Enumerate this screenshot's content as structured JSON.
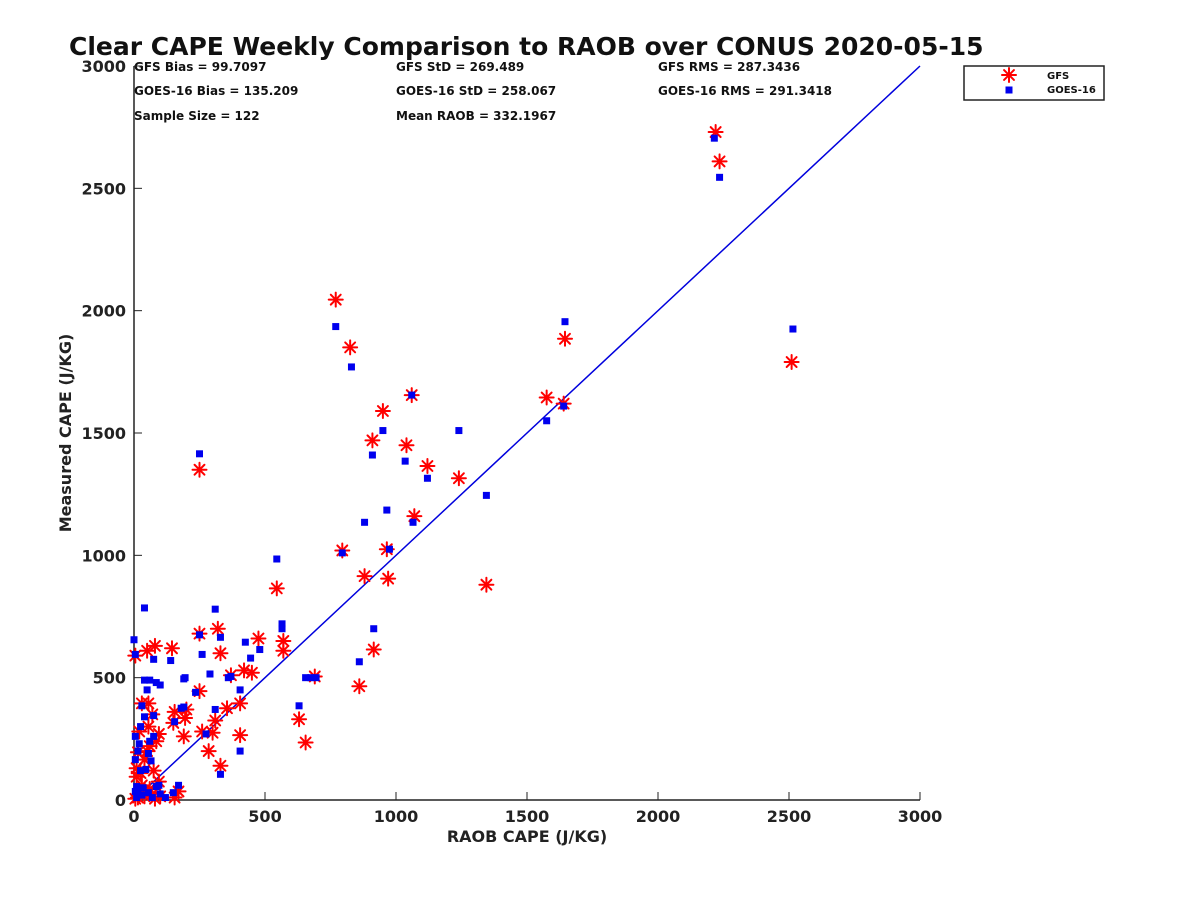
{
  "chart_data": {
    "type": "scatter",
    "title": "Clear CAPE Weekly Comparison to RAOB over CONUS 2020-05-15",
    "xlabel": "RAOB CAPE (J/KG)",
    "ylabel": "Measured CAPE (J/KG)",
    "xlim": [
      0,
      3000
    ],
    "ylim": [
      0,
      3000
    ],
    "xticks": [
      "0",
      "500",
      "1000",
      "1500",
      "2000",
      "2500",
      "3000"
    ],
    "yticks": [
      "0",
      "500",
      "1000",
      "1500",
      "2000",
      "2500",
      "3000"
    ],
    "grid": false,
    "legend_position": "top-right (outside axes)",
    "stats": {
      "row1": [
        "GFS Bias = 99.7097",
        "GFS StD = 269.489",
        "GFS RMS = 287.3436"
      ],
      "row2": [
        "GOES-16 Bias = 135.209",
        "GOES-16 StD = 258.067",
        "GOES-16 RMS = 291.3418"
      ],
      "row3": [
        "Sample Size = 122",
        "Mean RAOB = 332.1967"
      ]
    },
    "reference_line": {
      "x": [
        0,
        3000
      ],
      "y": [
        0,
        3000
      ],
      "color": "#0000dd"
    },
    "series": [
      {
        "name": "GFS",
        "marker": "asterisk",
        "color": "#ff0000",
        "points": [
          [
            2220,
            2730
          ],
          [
            2235,
            2610
          ],
          [
            2510,
            1790
          ],
          [
            1575,
            1645
          ],
          [
            1640,
            1620
          ],
          [
            1645,
            1885
          ],
          [
            770,
            2045
          ],
          [
            825,
            1850
          ],
          [
            1060,
            1655
          ],
          [
            950,
            1590
          ],
          [
            910,
            1470
          ],
          [
            1040,
            1450
          ],
          [
            1120,
            1365
          ],
          [
            1240,
            1315
          ],
          [
            250,
            1350
          ],
          [
            1070,
            1160
          ],
          [
            795,
            1020
          ],
          [
            965,
            1025
          ],
          [
            880,
            915
          ],
          [
            970,
            905
          ],
          [
            1345,
            880
          ],
          [
            545,
            865
          ],
          [
            915,
            615
          ],
          [
            860,
            465
          ],
          [
            690,
            505
          ],
          [
            630,
            330
          ],
          [
            655,
            235
          ],
          [
            475,
            660
          ],
          [
            570,
            650
          ],
          [
            570,
            610
          ],
          [
            320,
            700
          ],
          [
            330,
            600
          ],
          [
            250,
            680
          ],
          [
            450,
            520
          ],
          [
            420,
            530
          ],
          [
            370,
            510
          ],
          [
            405,
            395
          ],
          [
            405,
            265
          ],
          [
            355,
            375
          ],
          [
            250,
            445
          ],
          [
            310,
            325
          ],
          [
            300,
            275
          ],
          [
            260,
            280
          ],
          [
            285,
            200
          ],
          [
            330,
            140
          ],
          [
            200,
            370
          ],
          [
            195,
            335
          ],
          [
            190,
            260
          ],
          [
            155,
            360
          ],
          [
            150,
            315
          ],
          [
            145,
            620
          ],
          [
            80,
            630
          ],
          [
            50,
            610
          ],
          [
            5,
            590
          ],
          [
            30,
            395
          ],
          [
            55,
            395
          ],
          [
            70,
            350
          ],
          [
            55,
            300
          ],
          [
            85,
            240
          ],
          [
            60,
            220
          ],
          [
            95,
            270
          ],
          [
            50,
            200
          ],
          [
            40,
            165
          ],
          [
            75,
            120
          ],
          [
            20,
            280
          ],
          [
            15,
            195
          ],
          [
            10,
            130
          ],
          [
            25,
            110
          ],
          [
            30,
            60
          ],
          [
            60,
            45
          ],
          [
            95,
            75
          ],
          [
            10,
            95
          ],
          [
            15,
            10
          ],
          [
            40,
            15
          ],
          [
            70,
            25
          ],
          [
            100,
            15
          ],
          [
            155,
            10
          ],
          [
            170,
            35
          ],
          [
            5,
            5
          ],
          [
            80,
            5
          ]
        ]
      },
      {
        "name": "GOES-16",
        "marker": "square",
        "color": "#0000ee",
        "points": [
          [
            2215,
            2705
          ],
          [
            2235,
            2545
          ],
          [
            2515,
            1925
          ],
          [
            1645,
            1955
          ],
          [
            1575,
            1550
          ],
          [
            1640,
            1610
          ],
          [
            770,
            1935
          ],
          [
            830,
            1770
          ],
          [
            1060,
            1655
          ],
          [
            950,
            1510
          ],
          [
            910,
            1410
          ],
          [
            1035,
            1385
          ],
          [
            1240,
            1510
          ],
          [
            1345,
            1245
          ],
          [
            1120,
            1315
          ],
          [
            250,
            1415
          ],
          [
            965,
            1185
          ],
          [
            880,
            1135
          ],
          [
            1065,
            1135
          ],
          [
            795,
            1010
          ],
          [
            975,
            1025
          ],
          [
            545,
            985
          ],
          [
            915,
            700
          ],
          [
            860,
            565
          ],
          [
            565,
            720
          ],
          [
            565,
            700
          ],
          [
            695,
            500
          ],
          [
            675,
            500
          ],
          [
            655,
            500
          ],
          [
            630,
            385
          ],
          [
            310,
            780
          ],
          [
            250,
            675
          ],
          [
            330,
            665
          ],
          [
            425,
            645
          ],
          [
            260,
            595
          ],
          [
            480,
            615
          ],
          [
            445,
            580
          ],
          [
            290,
            515
          ],
          [
            360,
            500
          ],
          [
            370,
            505
          ],
          [
            405,
            450
          ],
          [
            405,
            200
          ],
          [
            310,
            370
          ],
          [
            235,
            440
          ],
          [
            275,
            270
          ],
          [
            330,
            105
          ],
          [
            195,
            500
          ],
          [
            190,
            495
          ],
          [
            140,
            570
          ],
          [
            75,
            575
          ],
          [
            40,
            785
          ],
          [
            0,
            655
          ],
          [
            5,
            595
          ],
          [
            190,
            380
          ],
          [
            180,
            375
          ],
          [
            155,
            320
          ],
          [
            100,
            470
          ],
          [
            85,
            480
          ],
          [
            60,
            490
          ],
          [
            40,
            490
          ],
          [
            50,
            450
          ],
          [
            30,
            385
          ],
          [
            40,
            340
          ],
          [
            25,
            300
          ],
          [
            5,
            260
          ],
          [
            20,
            230
          ],
          [
            15,
            200
          ],
          [
            5,
            165
          ],
          [
            75,
            345
          ],
          [
            75,
            260
          ],
          [
            60,
            240
          ],
          [
            55,
            190
          ],
          [
            65,
            160
          ],
          [
            45,
            125
          ],
          [
            25,
            120
          ],
          [
            95,
            60
          ],
          [
            10,
            55
          ],
          [
            35,
            50
          ],
          [
            170,
            60
          ],
          [
            150,
            30
          ],
          [
            100,
            25
          ],
          [
            120,
            10
          ],
          [
            70,
            10
          ],
          [
            30,
            20
          ],
          [
            10,
            10
          ],
          [
            15,
            40
          ],
          [
            55,
            30
          ],
          [
            5,
            35
          ],
          [
            85,
            55
          ]
        ]
      }
    ]
  }
}
